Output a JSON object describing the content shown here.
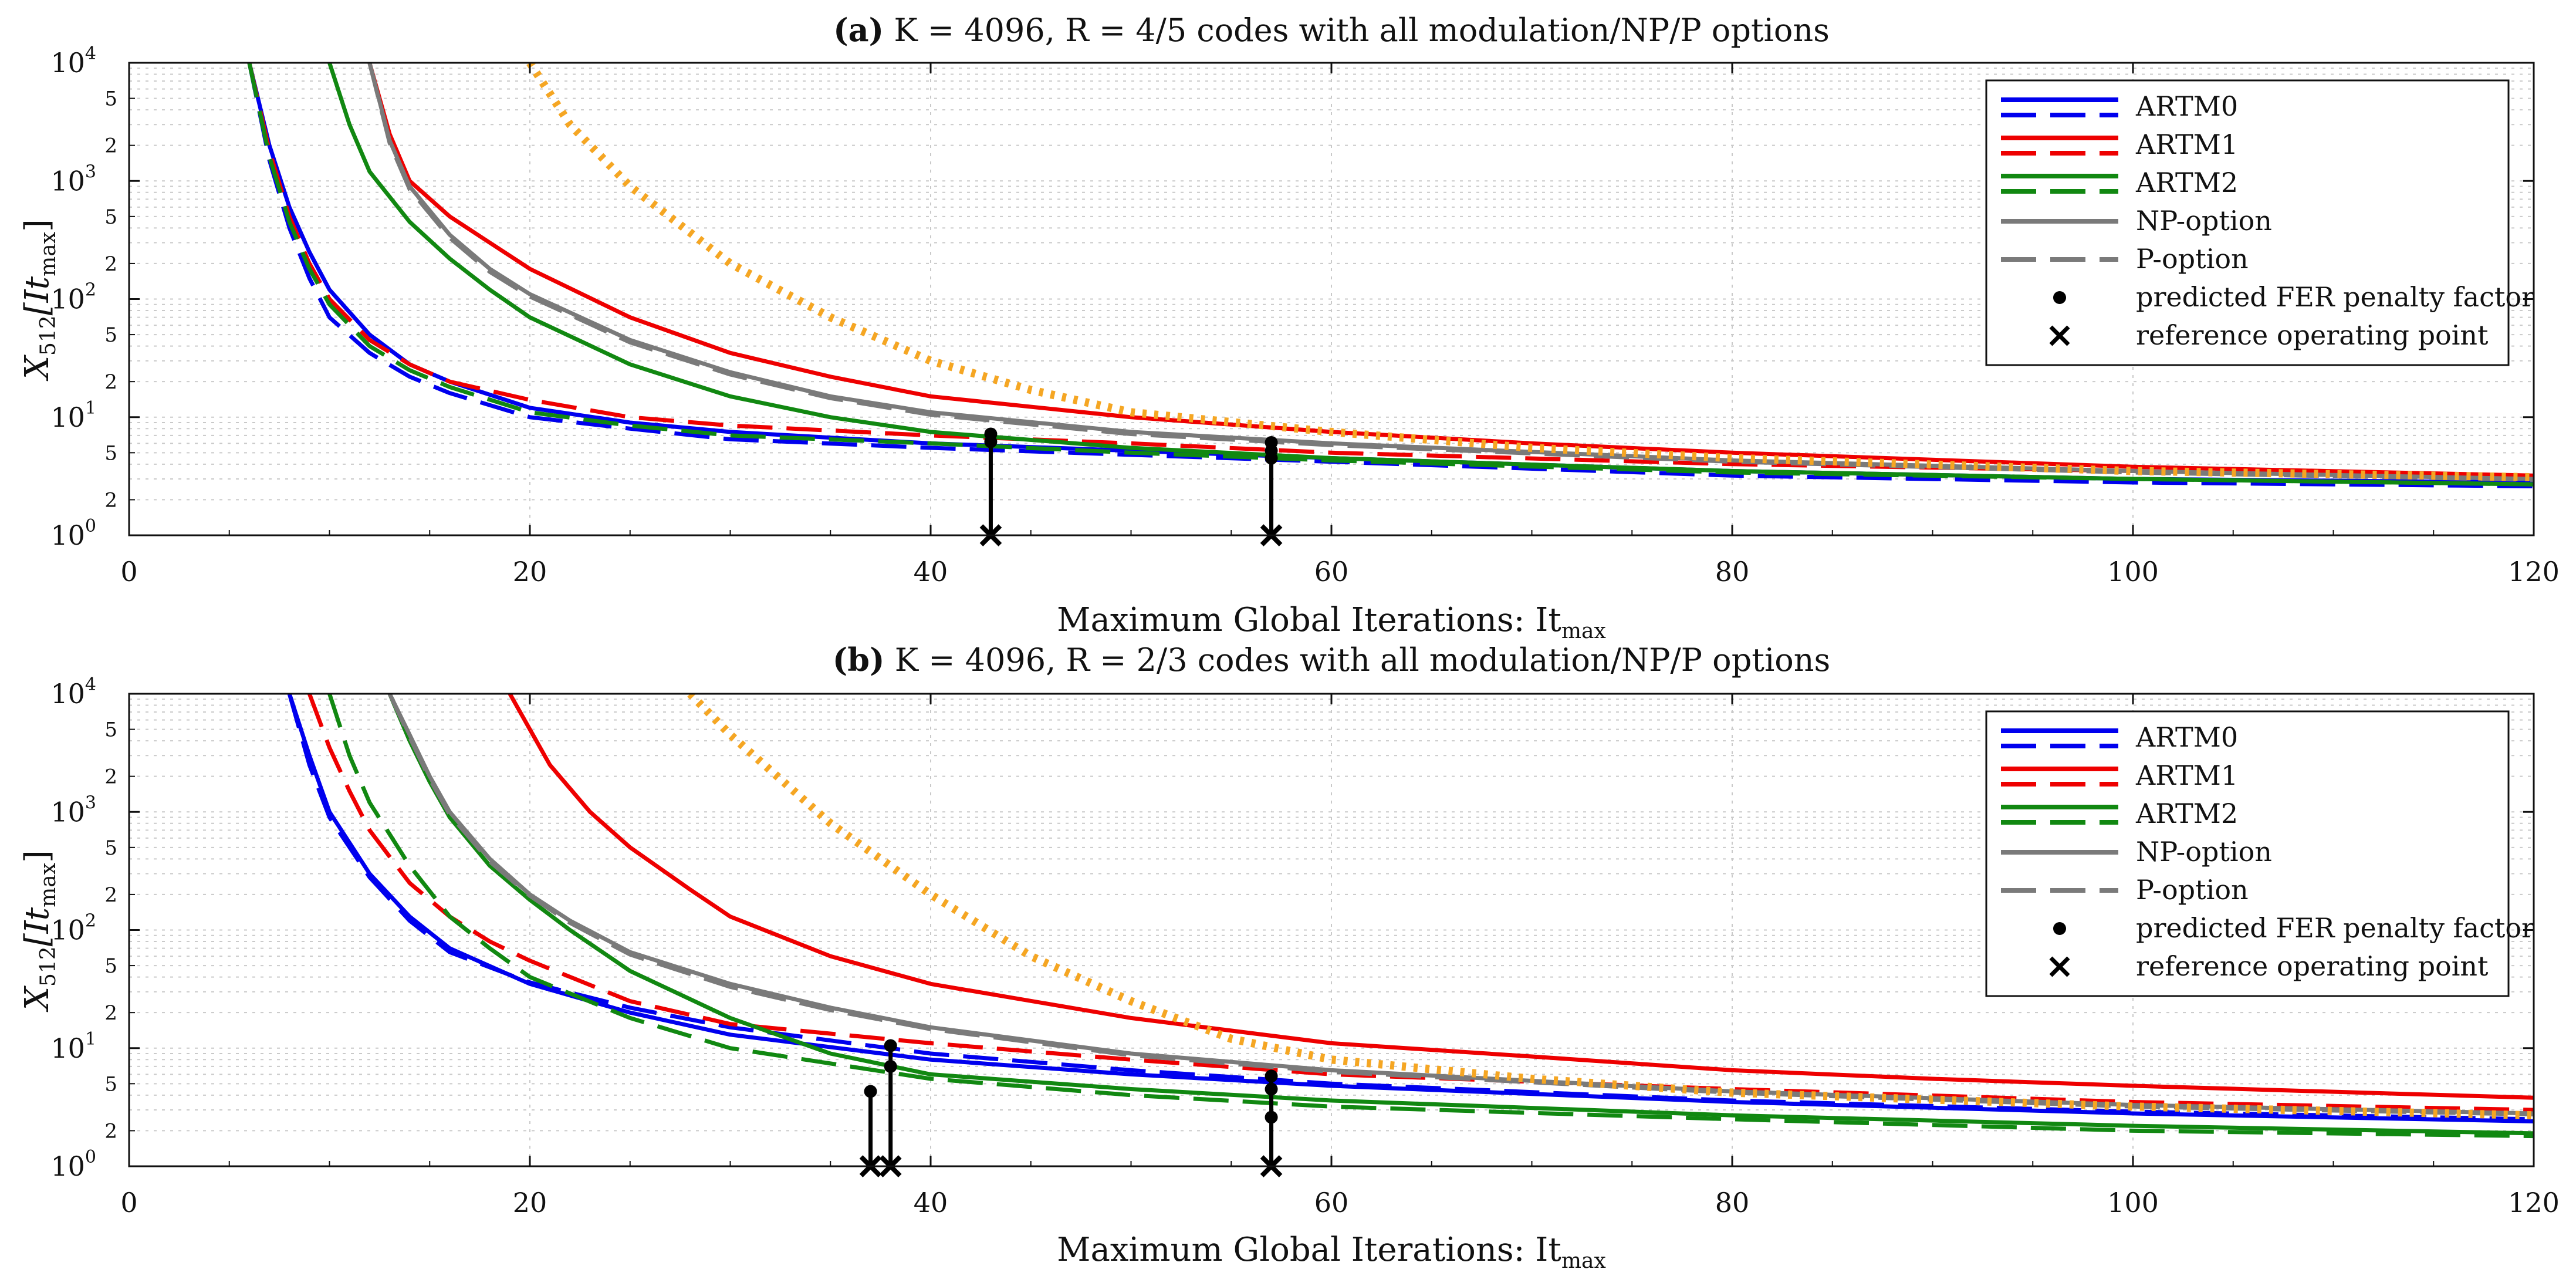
{
  "chart_data": [
    {
      "type": "line",
      "title_bold": "(a)",
      "title": "K = 4096, R = 4/5 codes with all modulation/NP/P options",
      "xlabel": "Maximum Global Iterations: It",
      "xlabel_sub": "max",
      "ylabel": "X",
      "ylabel_sub": "512",
      "ylabel_arg": "[It",
      "ylabel_arg_sub": "max",
      "ylabel_close": "]",
      "xlim": [
        0,
        120
      ],
      "ylim": [
        1,
        10000
      ],
      "yscale": "log",
      "grid": true,
      "legend_placement": "top-right",
      "x_ticks": [
        "0",
        "20",
        "40",
        "60",
        "80",
        "100",
        "120"
      ],
      "y_ticks": [
        {
          "base": "10",
          "exp": "0"
        },
        {
          "base": "10",
          "exp": "1"
        },
        {
          "base": "10",
          "exp": "2"
        },
        {
          "base": "10",
          "exp": "3"
        },
        {
          "base": "10",
          "exp": "4"
        }
      ],
      "y_minor_labels": [
        "2",
        "5"
      ],
      "legend": [
        {
          "label": "ARTM0",
          "color": "#0000ee",
          "style": "pair"
        },
        {
          "label": "ARTM1",
          "color": "#ee0000",
          "style": "pair"
        },
        {
          "label": "ARTM2",
          "color": "#118811",
          "style": "pair"
        },
        {
          "label": "NP-option",
          "color": "#7a7a7a",
          "style": "solid"
        },
        {
          "label": "P-option",
          "color": "#7a7a7a",
          "style": "dashed"
        },
        {
          "label": "predicted FER penalty factor",
          "color": "#000000",
          "style": "dot"
        },
        {
          "label": "reference operating point",
          "color": "#000000",
          "style": "cross"
        }
      ],
      "series": [
        {
          "color": "#0000ee",
          "dash": "solid",
          "x": [
            6,
            7,
            8,
            9,
            10,
            12,
            14,
            16,
            20,
            25,
            30,
            40,
            50,
            60,
            80,
            100,
            120
          ],
          "y": [
            10000,
            2000,
            600,
            250,
            120,
            50,
            28,
            20,
            12,
            9,
            7.5,
            6,
            5.2,
            4.5,
            3.5,
            3,
            2.8
          ]
        },
        {
          "color": "#0000ee",
          "dash": "dashed",
          "x": [
            6,
            7,
            8,
            9,
            10,
            12,
            14,
            16,
            20,
            25,
            30,
            40,
            50,
            60,
            80,
            100,
            120
          ],
          "y": [
            10000,
            1500,
            400,
            150,
            70,
            35,
            22,
            16,
            10,
            8,
            6.5,
            5.5,
            4.8,
            4.2,
            3.2,
            2.8,
            2.6
          ]
        },
        {
          "color": "#ee0000",
          "dash": "solid",
          "x": [
            12,
            13,
            14,
            16,
            18,
            20,
            25,
            30,
            35,
            40,
            50,
            60,
            70,
            80,
            100,
            120
          ],
          "y": [
            10000,
            2500,
            1000,
            500,
            300,
            180,
            70,
            35,
            22,
            15,
            10,
            7.5,
            6,
            5,
            3.8,
            3.2
          ]
        },
        {
          "color": "#ee0000",
          "dash": "dashed",
          "x": [
            6,
            7,
            8,
            9,
            10,
            12,
            14,
            16,
            20,
            25,
            30,
            40,
            50,
            60,
            80,
            100,
            120
          ],
          "y": [
            10000,
            1800,
            500,
            200,
            100,
            45,
            28,
            20,
            14,
            10,
            8.5,
            7,
            6,
            5,
            4,
            3.5,
            3.1
          ]
        },
        {
          "color": "#118811",
          "dash": "solid",
          "x": [
            10,
            11,
            12,
            14,
            16,
            18,
            20,
            25,
            30,
            35,
            40,
            50,
            60,
            80,
            100,
            120
          ],
          "y": [
            10000,
            3000,
            1200,
            450,
            220,
            120,
            70,
            28,
            15,
            10,
            7.5,
            5.5,
            4.5,
            3.5,
            3,
            2.7
          ]
        },
        {
          "color": "#118811",
          "dash": "dashed",
          "x": [
            6,
            7,
            8,
            9,
            10,
            12,
            14,
            16,
            20,
            25,
            30,
            40,
            50,
            60,
            80,
            100,
            120
          ],
          "y": [
            10000,
            1600,
            450,
            180,
            90,
            40,
            25,
            18,
            11,
            8.5,
            7,
            6,
            5,
            4.3,
            3.4,
            3,
            2.7
          ]
        },
        {
          "color": "#7a7a7a",
          "dash": "solid",
          "x": [
            12,
            13,
            14,
            16,
            18,
            20,
            25,
            30,
            35,
            40,
            50,
            60,
            80,
            100,
            120
          ],
          "y": [
            10000,
            2200,
            900,
            350,
            180,
            110,
            45,
            24,
            15,
            11,
            7.5,
            6,
            4.3,
            3.5,
            3
          ]
        },
        {
          "color": "#7a7a7a",
          "dash": "dashed",
          "x": [
            12,
            13,
            14,
            16,
            18,
            20,
            25,
            30,
            35,
            40,
            50,
            60,
            80,
            100,
            120
          ],
          "y": [
            10000,
            2100,
            850,
            330,
            170,
            105,
            43,
            23,
            14.5,
            10.5,
            7.2,
            5.8,
            4.2,
            3.4,
            2.95
          ]
        },
        {
          "color": "#f5a623",
          "dash": "dotted",
          "x": [
            20,
            22,
            25,
            30,
            35,
            40,
            45,
            50,
            60,
            70,
            80,
            100,
            120
          ],
          "y": [
            10000,
            3000,
            900,
            200,
            70,
            30,
            17,
            11,
            7.5,
            5.5,
            4.5,
            3.5,
            3.1
          ]
        }
      ],
      "markers": {
        "penalty_points": [
          {
            "x": 43,
            "y": 6.2
          },
          {
            "x": 43,
            "y": 7.2
          },
          {
            "x": 57,
            "y": 4.5
          },
          {
            "x": 57,
            "y": 5.2
          },
          {
            "x": 57,
            "y": 6.1
          }
        ],
        "reference_points": [
          {
            "x": 43,
            "y": 1
          },
          {
            "x": 57,
            "y": 1
          }
        ]
      }
    },
    {
      "type": "line",
      "title_bold": "(b)",
      "title": "K = 4096, R = 2/3 codes with all modulation/NP/P options",
      "xlabel": "Maximum Global Iterations: It",
      "xlabel_sub": "max",
      "ylabel": "X",
      "ylabel_sub": "512",
      "ylabel_arg": "[It",
      "ylabel_arg_sub": "max",
      "ylabel_close": "]",
      "xlim": [
        0,
        120
      ],
      "ylim": [
        1,
        10000
      ],
      "yscale": "log",
      "grid": true,
      "legend_placement": "top-right",
      "x_ticks": [
        "0",
        "20",
        "40",
        "60",
        "80",
        "100",
        "120"
      ],
      "y_ticks": [
        {
          "base": "10",
          "exp": "0"
        },
        {
          "base": "10",
          "exp": "1"
        },
        {
          "base": "10",
          "exp": "2"
        },
        {
          "base": "10",
          "exp": "3"
        },
        {
          "base": "10",
          "exp": "4"
        }
      ],
      "y_minor_labels": [
        "2",
        "5"
      ],
      "legend": [
        {
          "label": "ARTM0",
          "color": "#0000ee",
          "style": "pair"
        },
        {
          "label": "ARTM1",
          "color": "#ee0000",
          "style": "pair"
        },
        {
          "label": "ARTM2",
          "color": "#118811",
          "style": "pair"
        },
        {
          "label": "NP-option",
          "color": "#7a7a7a",
          "style": "solid"
        },
        {
          "label": "P-option",
          "color": "#7a7a7a",
          "style": "dashed"
        },
        {
          "label": "predicted FER penalty factor",
          "color": "#000000",
          "style": "dot"
        },
        {
          "label": "reference operating point",
          "color": "#000000",
          "style": "cross"
        }
      ],
      "series": [
        {
          "color": "#0000ee",
          "dash": "solid",
          "x": [
            8,
            9,
            10,
            12,
            14,
            16,
            20,
            25,
            30,
            40,
            50,
            60,
            80,
            100,
            120
          ],
          "y": [
            10000,
            3000,
            1000,
            300,
            130,
            70,
            35,
            20,
            13,
            8,
            6,
            4.8,
            3.5,
            2.8,
            2.4
          ]
        },
        {
          "color": "#0000ee",
          "dash": "dashed",
          "x": [
            8,
            9,
            10,
            12,
            14,
            16,
            20,
            25,
            30,
            40,
            50,
            60,
            80,
            100,
            120
          ],
          "y": [
            10000,
            2500,
            900,
            280,
            120,
            65,
            36,
            22,
            15,
            9,
            6.5,
            5,
            3.6,
            2.9,
            2.5
          ]
        },
        {
          "color": "#ee0000",
          "dash": "solid",
          "x": [
            19,
            20,
            21,
            23,
            25,
            28,
            30,
            35,
            40,
            50,
            60,
            70,
            80,
            90,
            100,
            120
          ],
          "y": [
            10000,
            5000,
            2500,
            1000,
            500,
            220,
            130,
            60,
            35,
            18,
            11,
            8.5,
            6.5,
            5.5,
            4.8,
            3.8
          ]
        },
        {
          "color": "#ee0000",
          "dash": "dashed",
          "x": [
            9,
            10,
            11,
            12,
            14,
            16,
            18,
            20,
            25,
            30,
            40,
            50,
            60,
            80,
            100,
            120
          ],
          "y": [
            10000,
            3500,
            1500,
            700,
            250,
            130,
            80,
            55,
            25,
            16,
            11,
            8,
            6,
            4.5,
            3.5,
            3
          ]
        },
        {
          "color": "#118811",
          "dash": "solid",
          "x": [
            13,
            14,
            15,
            16,
            18,
            20,
            22,
            25,
            30,
            35,
            40,
            50,
            60,
            80,
            100,
            120
          ],
          "y": [
            10000,
            4000,
            1800,
            900,
            350,
            180,
            100,
            45,
            18,
            9,
            6,
            4.5,
            3.6,
            2.7,
            2.2,
            1.9
          ]
        },
        {
          "color": "#118811",
          "dash": "dashed",
          "x": [
            10,
            11,
            12,
            14,
            16,
            18,
            20,
            25,
            30,
            40,
            50,
            60,
            80,
            100,
            120
          ],
          "y": [
            10000,
            3000,
            1200,
            350,
            130,
            70,
            40,
            18,
            10,
            5.5,
            4,
            3.2,
            2.5,
            2,
            1.8
          ]
        },
        {
          "color": "#7a7a7a",
          "dash": "solid",
          "x": [
            13,
            14,
            15,
            16,
            18,
            20,
            22,
            25,
            30,
            35,
            40,
            50,
            60,
            80,
            100,
            120
          ],
          "y": [
            10000,
            4500,
            2000,
            1000,
            400,
            200,
            120,
            65,
            35,
            22,
            15,
            9,
            6.5,
            4.3,
            3.3,
            2.8
          ]
        },
        {
          "color": "#7a7a7a",
          "dash": "dashed",
          "x": [
            13,
            14,
            15,
            16,
            18,
            20,
            22,
            25,
            30,
            35,
            40,
            50,
            60,
            80,
            100,
            120
          ],
          "y": [
            10000,
            4300,
            1900,
            950,
            380,
            195,
            115,
            62,
            33,
            21,
            14.5,
            8.7,
            6.3,
            4.2,
            3.2,
            2.75
          ]
        },
        {
          "color": "#f5a623",
          "dash": "dotted",
          "x": [
            28,
            30,
            35,
            40,
            45,
            50,
            55,
            60,
            70,
            80,
            100,
            120
          ],
          "y": [
            10000,
            4500,
            800,
            200,
            60,
            25,
            12,
            8,
            5.5,
            4.2,
            3.2,
            2.7
          ]
        }
      ],
      "markers": {
        "penalty_points": [
          {
            "x": 37,
            "y": 4.3
          },
          {
            "x": 38,
            "y": 7.0
          },
          {
            "x": 38,
            "y": 10.5
          },
          {
            "x": 57,
            "y": 2.6
          },
          {
            "x": 57,
            "y": 4.5
          },
          {
            "x": 57,
            "y": 5.8
          }
        ],
        "reference_points": [
          {
            "x": 37,
            "y": 1
          },
          {
            "x": 38,
            "y": 1
          },
          {
            "x": 57,
            "y": 1
          }
        ]
      }
    }
  ]
}
